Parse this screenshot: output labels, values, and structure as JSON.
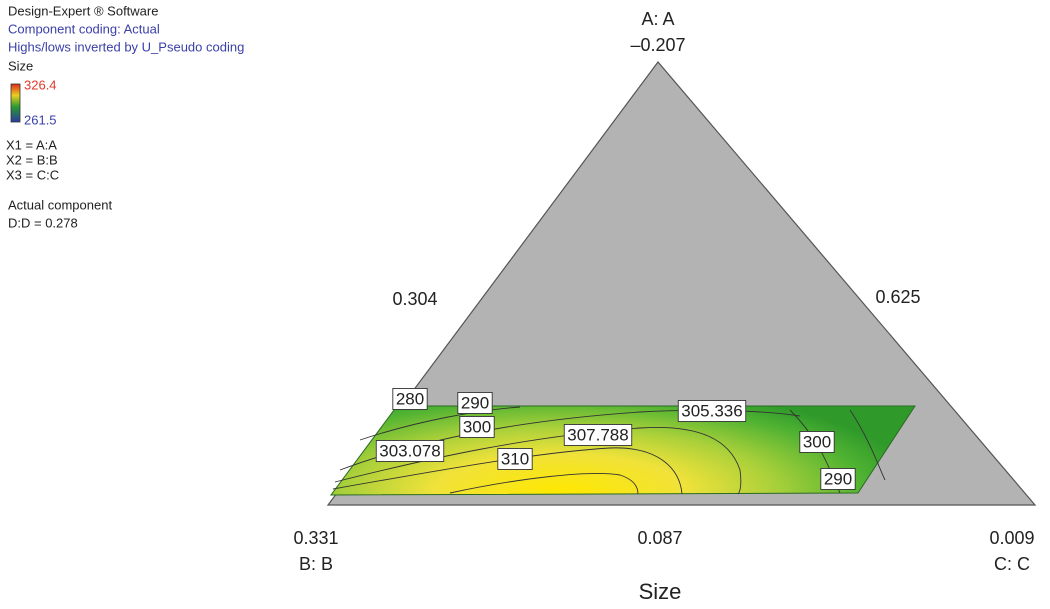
{
  "info": {
    "software": "Design-Expert ® Software",
    "coding": "Component coding: Actual",
    "inverted": "Highs/lows inverted by U_Pseudo coding"
  },
  "legend": {
    "title": "Size",
    "max": 326.4,
    "min": 261.5
  },
  "factors": [
    "X1 = A:A",
    "X2 = B:B",
    "X3 = C:C"
  ],
  "actual": {
    "title": "Actual component",
    "setting": "D:D = 0.278"
  },
  "chart_data": {
    "type": "ternary_contour",
    "title": "Size",
    "vertices": {
      "top": {
        "name": "A: A",
        "value": {
          "value": -0.207,
          "label": "–0.207"
        }
      },
      "left": {
        "name": "B: B",
        "value": 0.331
      },
      "right": {
        "name": "C: C",
        "value": 0.009
      }
    },
    "edge_values": {
      "left": 0.304,
      "right": 0.625,
      "bottom": 0.087
    },
    "contour_labels": [
      280,
      290,
      300,
      305.336,
      307.788,
      303.078,
      310,
      300,
      290
    ]
  }
}
